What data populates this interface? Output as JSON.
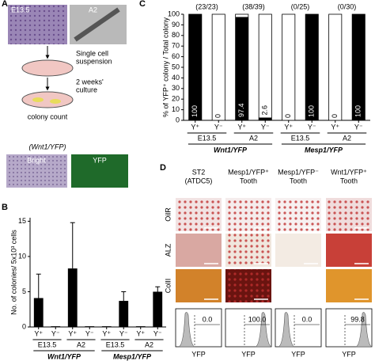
{
  "panel_a": {
    "label": "A",
    "image_labels": [
      "E13.5",
      "A2"
    ],
    "steps": [
      [
        "Single cell",
        "suspension"
      ],
      [
        "2 weeks'",
        "culture"
      ],
      [
        "colony count"
      ]
    ],
    "strain": "(Wnt1/YFP)",
    "channels": [
      "Bright",
      "YFP"
    ]
  },
  "chart_data": [
    {
      "type": "bar",
      "label": "B",
      "ylabel": "No. of colonies/ 5x10³ cells",
      "categories": [
        "Y⁺",
        "Y⁻",
        "Y⁺",
        "Y⁻",
        "Y⁺",
        "Y⁻",
        "Y⁺",
        "Y⁻"
      ],
      "groups": [
        "E13.5",
        "A2",
        "E13.5",
        "A2"
      ],
      "supergroups": [
        "Wnt1/YFP",
        "Mesp1/YFP"
      ],
      "values": [
        4.1,
        0.1,
        8.3,
        0.1,
        0.1,
        3.7,
        0.1,
        5.0
      ],
      "errors": [
        3.4,
        0,
        6.5,
        0,
        0,
        1.3,
        0,
        0.7
      ],
      "color": "#000000",
      "ylim": [
        0,
        15.5
      ],
      "yticks": [
        0,
        5,
        10,
        15
      ]
    },
    {
      "type": "stacked_bar",
      "label": "C",
      "ylabel": "% of YFP⁺ colony / Total colony",
      "annotations": [
        "(23/23)",
        "(38/39)",
        "(0/25)",
        "(0/30)"
      ],
      "categories": [
        "Y⁺",
        "Y⁻",
        "Y⁺",
        "Y⁻",
        "Y⁺",
        "Y⁻",
        "Y⁺",
        "Y⁻"
      ],
      "groups": [
        "E13.5",
        "A2",
        "E13.5",
        "A2"
      ],
      "supergroups": [
        "Wnt1/YFP",
        "Mesp1/YFP"
      ],
      "values": [
        100,
        0,
        97.4,
        2.6,
        0,
        100,
        0,
        100
      ],
      "color": "#000000",
      "ylim": [
        0,
        100
      ],
      "yticks": [
        0,
        10,
        20,
        30,
        40,
        50,
        60,
        70,
        80,
        90,
        100
      ]
    }
  ],
  "panel_d": {
    "label": "D",
    "columns": [
      [
        "ST2",
        "(ATDC5)"
      ],
      [
        "Mesp1/YFP⁺",
        "Tooth"
      ],
      [
        "Mesp1/YFP⁻",
        "Tooth"
      ],
      [
        "Wnt1/YFP⁺",
        "Tooth"
      ]
    ],
    "rows": [
      "OilR",
      "ALZ",
      "ColII"
    ],
    "histogram_values": [
      "0.0",
      "100.0",
      "0.0",
      "99.8"
    ],
    "histogram_axis": "YFP"
  }
}
